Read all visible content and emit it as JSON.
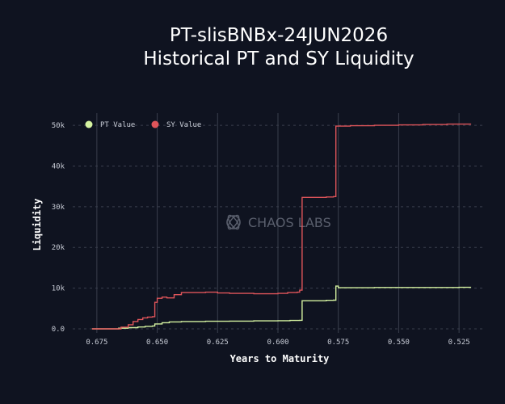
{
  "chart_data": {
    "type": "line",
    "title": "PT-slisBNBx-24JUN2026",
    "subtitle": "Historical PT and SY Liquidity",
    "xlabel": "Years to Maturity",
    "ylabel": "Liquidity",
    "watermark": "CHAOS LABS",
    "xlim": [
      0.685,
      0.515
    ],
    "ylim": [
      -1000,
      53000
    ],
    "x_ticks": [
      0.675,
      0.65,
      0.625,
      0.6,
      0.575,
      0.55,
      0.525
    ],
    "x_tick_labels": [
      "0.675",
      "0.650",
      "0.625",
      "0.600",
      "0.575",
      "0.550",
      "0.525"
    ],
    "y_ticks": [
      0,
      10000,
      20000,
      30000,
      40000,
      50000
    ],
    "y_tick_labels": [
      "0.0",
      "10k",
      "20k",
      "30k",
      "40k",
      "50k"
    ],
    "grid": true,
    "legend_position": "top-left",
    "series": [
      {
        "name": "PT Value",
        "color": "#d4f2a0",
        "points": [
          [
            0.677,
            0
          ],
          [
            0.668,
            0
          ],
          [
            0.666,
            150
          ],
          [
            0.662,
            300
          ],
          [
            0.658,
            450
          ],
          [
            0.655,
            600
          ],
          [
            0.652,
            700
          ],
          [
            0.651,
            1200
          ],
          [
            0.648,
            1500
          ],
          [
            0.645,
            1700
          ],
          [
            0.64,
            1800
          ],
          [
            0.63,
            1850
          ],
          [
            0.62,
            1900
          ],
          [
            0.61,
            1950
          ],
          [
            0.6,
            2000
          ],
          [
            0.595,
            2050
          ],
          [
            0.591,
            2100
          ],
          [
            0.59,
            6900
          ],
          [
            0.58,
            7000
          ],
          [
            0.577,
            7050
          ],
          [
            0.576,
            10500
          ],
          [
            0.575,
            10100
          ],
          [
            0.56,
            10150
          ],
          [
            0.54,
            10150
          ],
          [
            0.525,
            10200
          ],
          [
            0.52,
            10200
          ]
        ]
      },
      {
        "name": "SY Value",
        "color": "#e0555a",
        "points": [
          [
            0.677,
            0
          ],
          [
            0.667,
            0
          ],
          [
            0.665,
            400
          ],
          [
            0.662,
            1000
          ],
          [
            0.66,
            1800
          ],
          [
            0.658,
            2300
          ],
          [
            0.656,
            2700
          ],
          [
            0.654,
            2900
          ],
          [
            0.652,
            3000
          ],
          [
            0.651,
            6500
          ],
          [
            0.65,
            7500
          ],
          [
            0.648,
            7800
          ],
          [
            0.646,
            7600
          ],
          [
            0.643,
            8400
          ],
          [
            0.64,
            8900
          ],
          [
            0.635,
            8900
          ],
          [
            0.63,
            9000
          ],
          [
            0.625,
            8800
          ],
          [
            0.62,
            8700
          ],
          [
            0.61,
            8600
          ],
          [
            0.6,
            8700
          ],
          [
            0.596,
            8900
          ],
          [
            0.592,
            9000
          ],
          [
            0.591,
            9500
          ],
          [
            0.59,
            32300
          ],
          [
            0.58,
            32400
          ],
          [
            0.577,
            32500
          ],
          [
            0.576,
            49800
          ],
          [
            0.57,
            49900
          ],
          [
            0.56,
            50000
          ],
          [
            0.55,
            50100
          ],
          [
            0.54,
            50200
          ],
          [
            0.53,
            50300
          ],
          [
            0.52,
            50300
          ]
        ]
      }
    ]
  }
}
